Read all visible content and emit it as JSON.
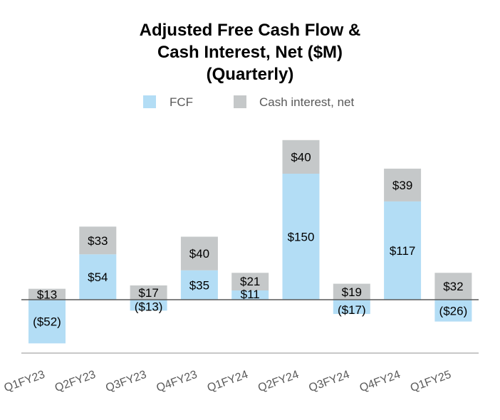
{
  "chart_data": {
    "type": "bar",
    "stacked": true,
    "title": [
      "Adjusted Free Cash Flow &",
      "Cash Interest, Net ($M)",
      "(Quarterly)"
    ],
    "legend_position": "top",
    "grid": false,
    "categories": [
      "Q1FY23",
      "Q2FY23",
      "Q3FY23",
      "Q4FY23",
      "Q1FY24",
      "Q2FY24",
      "Q3FY24",
      "Q4FY24",
      "Q1FY25"
    ],
    "ylim": [
      -100,
      300
    ],
    "series": [
      {
        "name": "FCF",
        "color": "#b3ddf5",
        "values": [
          -52,
          54,
          -13,
          35,
          11,
          150,
          -17,
          117,
          -26
        ],
        "labels": [
          "($52)",
          "$54",
          "($13)",
          "$35",
          "$11",
          "$150",
          "($17)",
          "$117",
          "($26)"
        ]
      },
      {
        "name": "Cash interest, net",
        "color": "#c5c8c9",
        "values": [
          13,
          33,
          17,
          40,
          21,
          40,
          19,
          39,
          32
        ],
        "labels": [
          "$13",
          "$33",
          "$17",
          "$40",
          "$21",
          "$40",
          "$19",
          "$39",
          "$32"
        ]
      }
    ]
  }
}
